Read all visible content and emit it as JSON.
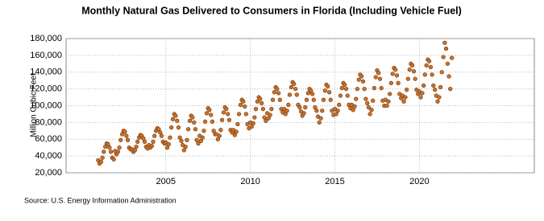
{
  "chart_data": {
    "type": "scatter",
    "title": "Monthly Natural Gas Delivered to Consumers in Florida (Including Vehicle Fuel)",
    "y_label": "Million Cubic Feet",
    "source": "Source: U.S. Energy Information Administration",
    "color": "#c8742c",
    "edge_color": "#7a3a10",
    "grid": true,
    "xlim": [
      1999.1,
      2026.8
    ],
    "xticks": [
      2005,
      2010,
      2015,
      2020
    ],
    "ylim": [
      20000,
      180000
    ],
    "yticks": [
      {
        "value": 20000,
        "label": "20,000"
      },
      {
        "value": 40000,
        "label": "40,000"
      },
      {
        "value": 60000,
        "label": "60,000"
      },
      {
        "value": 80000,
        "label": "80,000"
      },
      {
        "value": 100000,
        "label": "100,000"
      },
      {
        "value": 120000,
        "label": "120,000"
      },
      {
        "value": 140000,
        "label": "140,000"
      },
      {
        "value": 160000,
        "label": "160,000"
      },
      {
        "value": 180000,
        "label": "180,000"
      }
    ],
    "x": [
      2001.0,
      2001.08,
      2001.17,
      2001.25,
      2001.33,
      2001.42,
      2001.5,
      2001.58,
      2001.67,
      2001.75,
      2001.83,
      2001.92,
      2002.0,
      2002.08,
      2002.17,
      2002.25,
      2002.33,
      2002.42,
      2002.5,
      2002.58,
      2002.67,
      2002.75,
      2002.83,
      2002.92,
      2003.0,
      2003.08,
      2003.17,
      2003.25,
      2003.33,
      2003.42,
      2003.5,
      2003.58,
      2003.67,
      2003.75,
      2003.83,
      2003.92,
      2004.0,
      2004.08,
      2004.17,
      2004.25,
      2004.33,
      2004.42,
      2004.5,
      2004.58,
      2004.67,
      2004.75,
      2004.83,
      2004.92,
      2005.0,
      2005.08,
      2005.17,
      2005.25,
      2005.33,
      2005.42,
      2005.5,
      2005.58,
      2005.67,
      2005.75,
      2005.83,
      2005.92,
      2006.0,
      2006.08,
      2006.17,
      2006.25,
      2006.33,
      2006.42,
      2006.5,
      2006.58,
      2006.67,
      2006.75,
      2006.83,
      2006.92,
      2007.0,
      2007.08,
      2007.17,
      2007.25,
      2007.33,
      2007.42,
      2007.5,
      2007.58,
      2007.67,
      2007.75,
      2007.83,
      2007.92,
      2008.0,
      2008.08,
      2008.17,
      2008.25,
      2008.33,
      2008.42,
      2008.5,
      2008.58,
      2008.67,
      2008.75,
      2008.83,
      2008.92,
      2009.0,
      2009.08,
      2009.17,
      2009.25,
      2009.33,
      2009.42,
      2009.5,
      2009.58,
      2009.67,
      2009.75,
      2009.83,
      2009.92,
      2010.0,
      2010.08,
      2010.17,
      2010.25,
      2010.33,
      2010.42,
      2010.5,
      2010.58,
      2010.67,
      2010.75,
      2010.83,
      2010.92,
      2011.0,
      2011.08,
      2011.17,
      2011.25,
      2011.33,
      2011.42,
      2011.5,
      2011.58,
      2011.67,
      2011.75,
      2011.83,
      2011.92,
      2012.0,
      2012.08,
      2012.17,
      2012.25,
      2012.33,
      2012.42,
      2012.5,
      2012.58,
      2012.67,
      2012.75,
      2012.83,
      2012.92,
      2013.0,
      2013.08,
      2013.17,
      2013.25,
      2013.33,
      2013.42,
      2013.5,
      2013.58,
      2013.67,
      2013.75,
      2013.83,
      2013.92,
      2014.0,
      2014.08,
      2014.17,
      2014.25,
      2014.33,
      2014.42,
      2014.5,
      2014.58,
      2014.67,
      2014.75,
      2014.83,
      2014.92,
      2015.0,
      2015.08,
      2015.17,
      2015.25,
      2015.33,
      2015.42,
      2015.5,
      2015.58,
      2015.67,
      2015.75,
      2015.83,
      2015.92,
      2016.0,
      2016.08,
      2016.17,
      2016.25,
      2016.33,
      2016.42,
      2016.5,
      2016.58,
      2016.67,
      2016.75,
      2016.83,
      2016.92,
      2017.0,
      2017.08,
      2017.17,
      2017.25,
      2017.33,
      2017.42,
      2017.5,
      2017.58,
      2017.67,
      2017.75,
      2017.83,
      2017.92,
      2018.0,
      2018.08,
      2018.17,
      2018.25,
      2018.33,
      2018.42,
      2018.5,
      2018.58,
      2018.67,
      2018.75,
      2018.83,
      2018.92,
      2019.0,
      2019.08,
      2019.17,
      2019.25,
      2019.33,
      2019.42,
      2019.5,
      2019.58,
      2019.67,
      2019.75,
      2019.83,
      2019.92,
      2020.0,
      2020.08,
      2020.17,
      2020.25,
      2020.33,
      2020.42,
      2020.5,
      2020.58,
      2020.67,
      2020.75,
      2020.83,
      2020.92,
      2021.0,
      2021.08,
      2021.17,
      2021.25,
      2021.33,
      2021.42,
      2021.5,
      2021.58,
      2021.67,
      2021.75,
      2021.83,
      2021.92
    ],
    "values": [
      35000,
      31000,
      33000,
      38000,
      45000,
      51000,
      55000,
      54000,
      50000,
      45000,
      38000,
      36000,
      46000,
      42000,
      45000,
      50000,
      59000,
      66000,
      70000,
      69000,
      64000,
      59000,
      50000,
      48000,
      48000,
      45000,
      47000,
      51000,
      57000,
      62000,
      65000,
      64000,
      61000,
      57000,
      51000,
      49000,
      53000,
      50000,
      52000,
      57000,
      64000,
      70000,
      73000,
      72000,
      68000,
      64000,
      57000,
      55000,
      56000,
      50000,
      54000,
      62000,
      74000,
      84000,
      90000,
      88000,
      82000,
      74000,
      62000,
      58000,
      53000,
      47000,
      51000,
      59000,
      72000,
      82000,
      88000,
      86000,
      80000,
      72000,
      59000,
      55000,
      64000,
      58000,
      62000,
      70000,
      81000,
      91000,
      97000,
      95000,
      89000,
      81000,
      70000,
      66000,
      66000,
      60000,
      64000,
      71000,
      83000,
      92000,
      98000,
      96000,
      90000,
      83000,
      71000,
      68000,
      71000,
      65000,
      69000,
      78000,
      90000,
      101000,
      107000,
      105000,
      99000,
      90000,
      78000,
      73000,
      80000,
      75000,
      79000,
      86000,
      96000,
      105000,
      110000,
      108000,
      103000,
      96000,
      86000,
      82000,
      91000,
      85000,
      89000,
      96000,
      107000,
      116000,
      122000,
      120000,
      115000,
      107000,
      96000,
      92000,
      96000,
      90000,
      94000,
      101000,
      113000,
      122000,
      128000,
      126000,
      120000,
      113000,
      101000,
      98000,
      93000,
      88000,
      91000,
      98000,
      107000,
      115000,
      120000,
      118000,
      114000,
      107000,
      98000,
      94000,
      87000,
      80000,
      85000,
      94000,
      107000,
      118000,
      125000,
      123000,
      116000,
      107000,
      94000,
      89000,
      96000,
      90000,
      94000,
      101000,
      112000,
      121000,
      127000,
      125000,
      120000,
      112000,
      101000,
      97000,
      101000,
      95000,
      99000,
      108000,
      120000,
      131000,
      137000,
      135000,
      129000,
      120000,
      108000,
      103000,
      98000,
      90000,
      95000,
      106000,
      121000,
      134000,
      142000,
      139000,
      132000,
      121000,
      106000,
      100000,
      107000,
      100000,
      105000,
      114000,
      127000,
      138000,
      145000,
      143000,
      136000,
      127000,
      114000,
      109000,
      112000,
      105000,
      110000,
      119000,
      132000,
      143000,
      150000,
      148000,
      141000,
      132000,
      119000,
      114000,
      117000,
      110000,
      115000,
      124000,
      137000,
      148000,
      155000,
      153000,
      146000,
      137000,
      124000,
      119000,
      112000,
      105000,
      110000,
      122000,
      140000,
      158000,
      175000,
      168000,
      150000,
      135000,
      120000,
      157000
    ]
  }
}
